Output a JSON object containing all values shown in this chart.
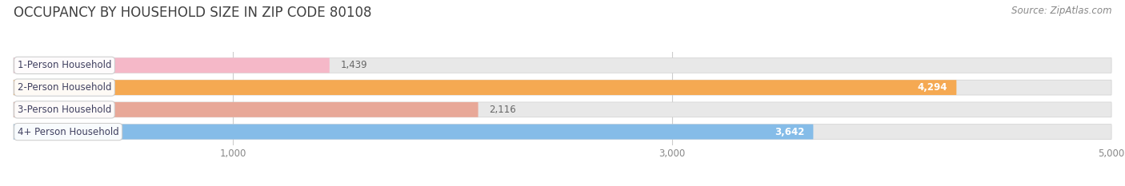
{
  "title": "OCCUPANCY BY HOUSEHOLD SIZE IN ZIP CODE 80108",
  "source": "Source: ZipAtlas.com",
  "categories": [
    "1-Person Household",
    "2-Person Household",
    "3-Person Household",
    "4+ Person Household"
  ],
  "values": [
    1439,
    4294,
    2116,
    3642
  ],
  "bar_colors": [
    "#f5b8c8",
    "#f5a952",
    "#e8a898",
    "#85bce8"
  ],
  "xlim": [
    0,
    5000
  ],
  "xticks": [
    1000,
    3000,
    5000
  ],
  "background_color": "#ffffff",
  "bar_background_color": "#e8e8e8",
  "title_fontsize": 12,
  "source_fontsize": 8.5,
  "label_fontsize": 8.5,
  "value_fontsize": 8.5,
  "value_colors_inside": [
    "white",
    "white",
    "white",
    "white"
  ],
  "values_inside": [
    false,
    true,
    false,
    true
  ]
}
